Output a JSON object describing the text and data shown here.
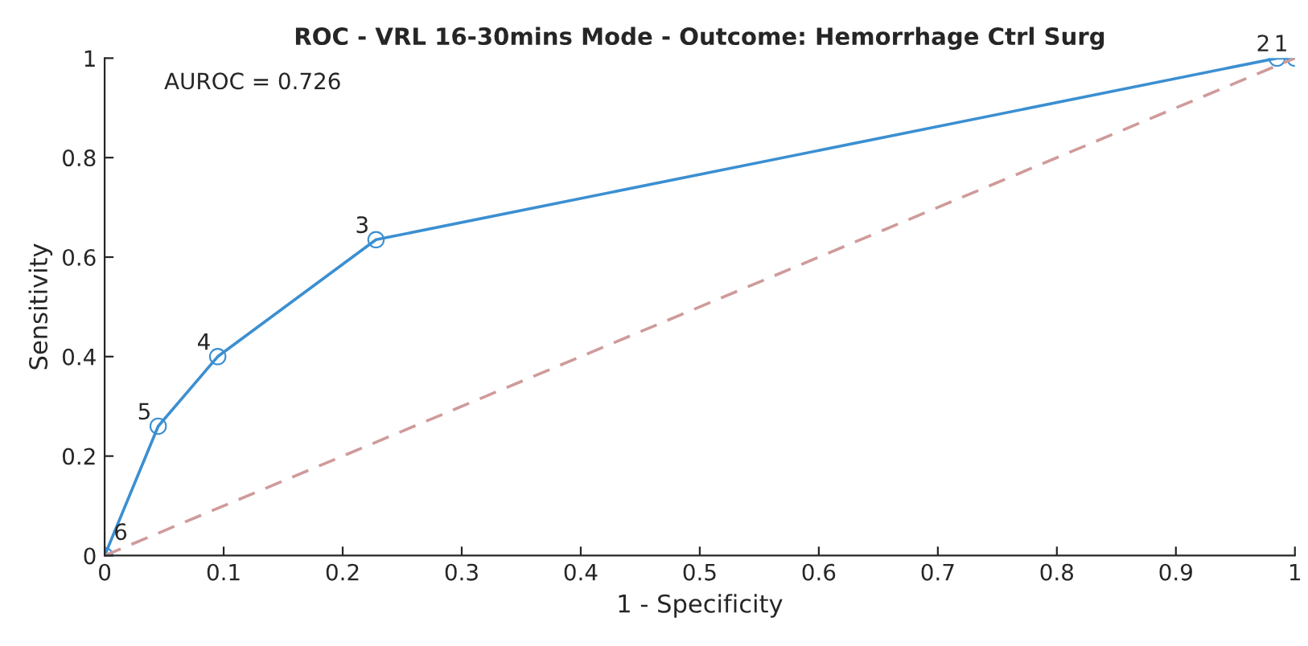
{
  "chart_data": {
    "type": "line",
    "title": "ROC - VRL 16-30mins Mode - Outcome: Hemorrhage Ctrl Surg",
    "xlabel": "1 - Specificity",
    "ylabel": "Sensitivity",
    "series": [
      {
        "color": "#3b8fd1",
        "x": [
          0,
          0.045,
          0.095,
          0.228,
          0.985,
          1
        ],
        "values": [
          0,
          0.26,
          0.4,
          0.635,
          1,
          1
        ],
        "marker": "circle",
        "line_style": "solid"
      },
      {
        "color": "#d09a9a",
        "x": [
          0,
          1
        ],
        "values": [
          0,
          1
        ],
        "marker": "none",
        "line_style": "dashed"
      }
    ],
    "annotations": [
      "AUROC = 0.726",
      {
        "text": "6",
        "x": 0,
        "y": 0
      },
      {
        "text": "5",
        "x": 0.045,
        "y": 0.26
      },
      {
        "text": "4",
        "x": 0.095,
        "y": 0.4
      },
      {
        "text": "3",
        "x": 0.228,
        "y": 0.635
      },
      {
        "text": "2",
        "x": 0.985,
        "y": 1
      },
      {
        "text": "1",
        "x": 1,
        "y": 1
      }
    ],
    "xlim": [
      0,
      1
    ],
    "ylim": [
      0,
      1
    ],
    "xticks": [
      0,
      0.1,
      0.2,
      0.3,
      0.4,
      0.5,
      0.6,
      0.7,
      0.8,
      0.9,
      1
    ],
    "yticks": [
      0,
      0.2,
      0.4,
      0.6,
      0.8,
      1
    ],
    "grid": false,
    "legend": false
  }
}
